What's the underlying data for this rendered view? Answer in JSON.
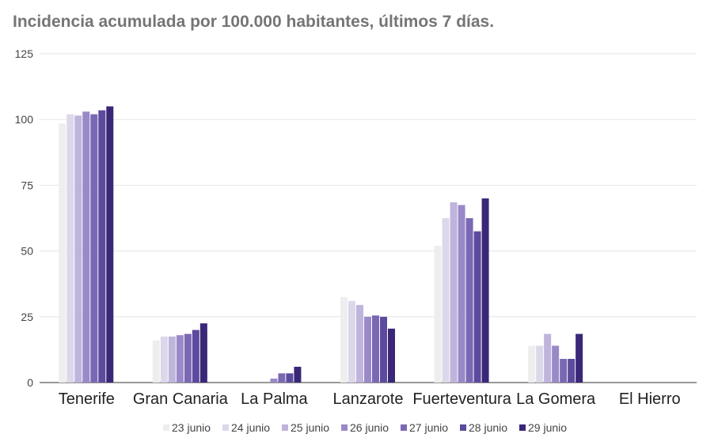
{
  "chart_data": {
    "type": "bar",
    "title": "Incidencia acumulada por 100.000 habitantes, últimos 7 días.",
    "xlabel": "",
    "ylabel": "",
    "ylim": [
      0,
      125
    ],
    "yticks": [
      "0",
      "25",
      "50",
      "75",
      "100",
      "125"
    ],
    "grid": true,
    "legend_position": "bottom",
    "categories": [
      "Tenerife",
      "Gran Canaria",
      "La Palma",
      "Lanzarote",
      "Fuerteventura",
      "La Gomera",
      "El Hierro"
    ],
    "series": [
      {
        "name": "23 junio",
        "color": "#eeeeee",
        "values": [
          98.5,
          16.0,
          0,
          32.5,
          52.0,
          14.0,
          0
        ]
      },
      {
        "name": "24 junio",
        "color": "#ddd7ea",
        "values": [
          102.0,
          17.5,
          0,
          31.0,
          62.5,
          14.0,
          0
        ]
      },
      {
        "name": "25 junio",
        "color": "#bfb4db",
        "values": [
          101.5,
          17.5,
          0,
          29.5,
          68.5,
          18.5,
          0
        ]
      },
      {
        "name": "26 junio",
        "color": "#9a89c8",
        "values": [
          103.0,
          18.0,
          1.5,
          25.0,
          67.5,
          14.0,
          0
        ]
      },
      {
        "name": "27 junio",
        "color": "#7b68b4",
        "values": [
          102.0,
          18.5,
          3.5,
          25.5,
          62.5,
          9.0,
          0
        ]
      },
      {
        "name": "28 junio",
        "color": "#5c4a9e",
        "values": [
          103.5,
          20.0,
          3.5,
          25.0,
          57.5,
          9.0,
          0
        ]
      },
      {
        "name": "29 junio",
        "color": "#3b2777",
        "values": [
          105.0,
          22.5,
          6.0,
          20.5,
          70.0,
          18.5,
          0
        ]
      }
    ]
  }
}
